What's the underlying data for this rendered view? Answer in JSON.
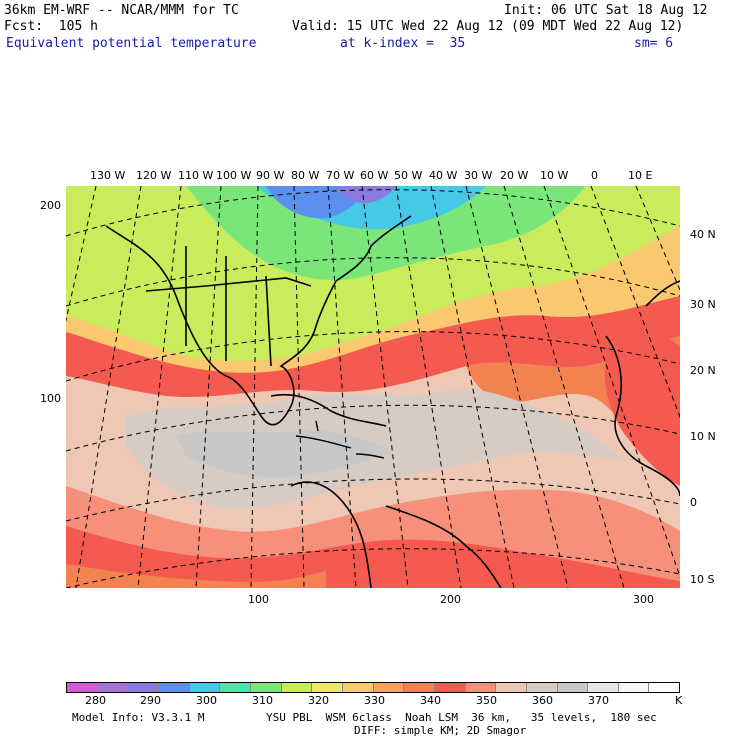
{
  "header": {
    "model_line": "36km EM-WRF -- NCAR/MMM for TC",
    "init_line": "Init: 06 UTC Sat 18 Aug 12",
    "fcst_line": "Fcst:  105 h",
    "valid_line": "Valid: 15 UTC Wed 22 Aug 12 (09 MDT Wed 22 Aug 12)",
    "field_name": "Equivalent potential temperature",
    "level_label": "at k-index =  35",
    "smoothing": "sm= 6"
  },
  "map": {
    "top_lon_labels": [
      "130 W",
      "120 W",
      "110 W",
      "100 W",
      "90 W",
      "80 W",
      "70 W",
      "60 W",
      "50 W",
      "40 W",
      "30 W",
      "20 W",
      "10 W",
      "0",
      "10 E"
    ],
    "right_lat_labels": [
      "40 N",
      "30 N",
      "20 N",
      "10 N",
      "0",
      "10 S"
    ],
    "left_grid_labels": [
      "200",
      "100"
    ],
    "bottom_grid_labels": [
      "100",
      "200",
      "300"
    ]
  },
  "colorbar": {
    "colors": [
      "#d25ad2",
      "#a873d8",
      "#8a7be0",
      "#5b8ff0",
      "#46c8e6",
      "#46e6a6",
      "#7ae67a",
      "#c8ec5c",
      "#f0e66e",
      "#fac86e",
      "#f8a460",
      "#f28250",
      "#f45a50",
      "#f7907a",
      "#eec8b4",
      "#d7ccc4",
      "#c8c8c8",
      "#e6e6e6",
      "#f6f6f6",
      "#ffffff"
    ],
    "labels": [
      "280",
      "290",
      "300",
      "310",
      "320",
      "330",
      "340",
      "350",
      "360",
      "370"
    ],
    "unit": "K"
  },
  "footer": {
    "model_info": "Model Info: V3.3.1 M",
    "physics": "YSU PBL  WSM 6class  Noah LSM  36 km,   35 levels,  180 sec",
    "diffusion": "DIFF: simple KM; 2D Smagor"
  }
}
